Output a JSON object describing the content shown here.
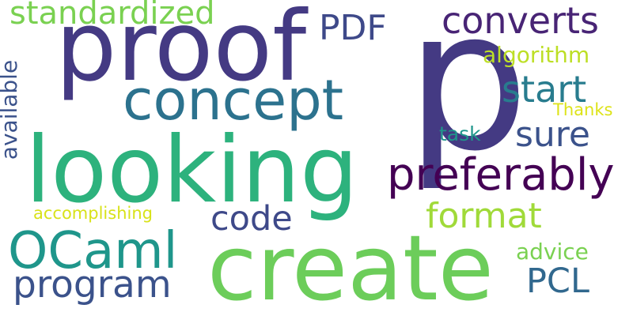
{
  "words": [
    {
      "key": "p",
      "text": "p",
      "color": "#443a83"
    },
    {
      "key": "proof",
      "text": "proof",
      "color": "#443a83"
    },
    {
      "key": "looking",
      "text": "looking",
      "color": "#2db27d"
    },
    {
      "key": "create",
      "text": "create",
      "color": "#6ccd5a"
    },
    {
      "key": "concept",
      "text": "concept",
      "color": "#2c728e"
    },
    {
      "key": "preferably",
      "text": "preferably",
      "color": "#440154"
    },
    {
      "key": "standardized",
      "text": "standardized",
      "color": "#7ad151"
    },
    {
      "key": "converts",
      "text": "converts",
      "color": "#482475"
    },
    {
      "key": "ocaml",
      "text": "OCaml",
      "color": "#1f968b"
    },
    {
      "key": "program",
      "text": "program",
      "color": "#3b528b"
    },
    {
      "key": "format",
      "text": "format",
      "color": "#a0da39"
    },
    {
      "key": "start",
      "text": "start",
      "color": "#287c8e"
    },
    {
      "key": "pdf",
      "text": "PDF",
      "color": "#3e4989"
    },
    {
      "key": "code",
      "text": "code",
      "color": "#3e4989"
    },
    {
      "key": "sure",
      "text": "sure",
      "color": "#3b528b"
    },
    {
      "key": "pcl",
      "text": "PCL",
      "color": "#31688e"
    },
    {
      "key": "available",
      "text": "available",
      "color": "#3b528b"
    },
    {
      "key": "algorithm",
      "text": "algorithm",
      "color": "#bddf26"
    },
    {
      "key": "advice",
      "text": "advice",
      "color": "#7ad151"
    },
    {
      "key": "task",
      "text": "task",
      "color": "#1f968b"
    },
    {
      "key": "thanks",
      "text": "Thanks",
      "color": "#dde318"
    },
    {
      "key": "accomplishing",
      "text": "accomplishing",
      "color": "#d8e219"
    }
  ]
}
